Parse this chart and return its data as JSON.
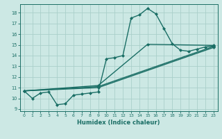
{
  "xlabel": "Humidex (Indice chaleur)",
  "background_color": "#cce8e4",
  "grid_color": "#aacfca",
  "line_color": "#1a6e65",
  "xlim": [
    -0.5,
    23.5
  ],
  "ylim": [
    8.8,
    18.8
  ],
  "xticks": [
    0,
    1,
    2,
    3,
    4,
    5,
    6,
    7,
    8,
    9,
    10,
    11,
    12,
    13,
    14,
    15,
    16,
    17,
    18,
    19,
    20,
    21,
    22,
    23
  ],
  "yticks": [
    9,
    10,
    11,
    12,
    13,
    14,
    15,
    16,
    17,
    18
  ],
  "lines": [
    {
      "x": [
        0,
        1,
        2,
        3,
        4,
        5,
        6,
        7,
        8,
        9,
        10,
        11,
        12,
        13,
        14,
        15,
        16,
        17,
        18,
        19,
        20,
        21,
        22,
        23
      ],
      "y": [
        10.7,
        10.0,
        10.5,
        10.6,
        9.4,
        9.5,
        10.3,
        10.4,
        10.5,
        10.6,
        13.7,
        13.8,
        14.0,
        17.5,
        17.8,
        18.4,
        17.9,
        16.5,
        15.1,
        14.5,
        14.4,
        14.6,
        14.8,
        14.9
      ],
      "marker": "D",
      "markersize": 2.0,
      "linewidth": 1.0
    },
    {
      "x": [
        0,
        9,
        23
      ],
      "y": [
        10.7,
        11.0,
        14.75
      ],
      "marker": "D",
      "markersize": 2.0,
      "linewidth": 1.0
    },
    {
      "x": [
        0,
        9,
        23
      ],
      "y": [
        10.7,
        11.1,
        14.85
      ],
      "marker": "D",
      "markersize": 2.0,
      "linewidth": 1.0
    },
    {
      "x": [
        0,
        9,
        15,
        23
      ],
      "y": [
        10.7,
        11.2,
        15.05,
        14.95
      ],
      "marker": "D",
      "markersize": 2.0,
      "linewidth": 1.0
    }
  ]
}
